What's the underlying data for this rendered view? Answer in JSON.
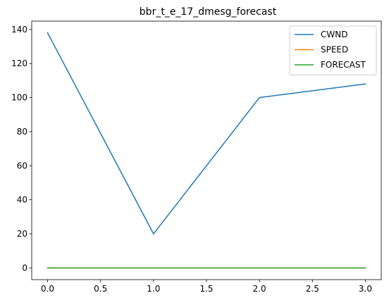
{
  "chart_data": {
    "type": "line",
    "title": "bbr_t_e_17_dmesg_forecast",
    "xlabel": "",
    "ylabel": "",
    "x": [
      0,
      1,
      2,
      3
    ],
    "xlim": [
      -0.15,
      3.15
    ],
    "ylim": [
      -6.9,
      144.9
    ],
    "xticks": [
      0,
      0.5,
      1,
      1.5,
      2,
      2.5,
      3
    ],
    "xtick_labels": [
      "0.0",
      "0.5",
      "1.0",
      "1.5",
      "2.0",
      "2.5",
      "3.0"
    ],
    "yticks": [
      0,
      20,
      40,
      60,
      80,
      100,
      120,
      140
    ],
    "ytick_labels": [
      "0",
      "20",
      "40",
      "60",
      "80",
      "100",
      "120",
      "140"
    ],
    "grid": false,
    "legend_position": "top-right",
    "series": [
      {
        "name": "CWND",
        "color": "#1f77b4",
        "values": [
          138,
          20,
          100,
          108
        ]
      },
      {
        "name": "SPEED",
        "color": "#ff7f0e",
        "values": [
          0,
          0,
          0,
          0
        ]
      },
      {
        "name": "FORECAST",
        "color": "#2ca02c",
        "values": [
          0,
          0,
          0,
          0
        ]
      }
    ]
  }
}
